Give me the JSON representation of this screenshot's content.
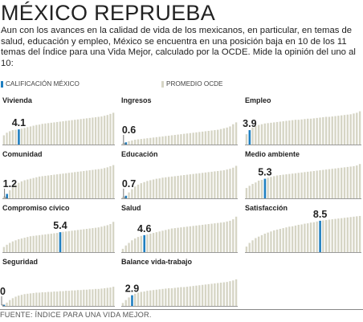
{
  "title": "MÉXICO REPRUEBA",
  "intro": "Aun con los avances en la calidad de vida de los mexicanos, en particular, en temas de salud, educación y empleo, México se encuentra en una posición baja en 10 de los 11 temas del Índice para una Vida Mejor, calculado por la OCDE. Mide la opinión del uno al 10:",
  "legend": [
    {
      "label": "CALIFICACIÓN MÉXICO",
      "color": "#1f7fc1"
    },
    {
      "label": "PROMEDIO OCDE",
      "color": "#d6d5c5"
    }
  ],
  "colors": {
    "mexico": "#1f7fc1",
    "ocde": "#d6d5c5",
    "axis": "#9a9a9a",
    "leader": "#555555"
  },
  "source": "FUENTE: ÍNDICE PARA UNA VIDA MEJOR.",
  "chart_data": [
    {
      "type": "bar",
      "title": "Vivienda",
      "mexico_value": "4.1",
      "mexico_rank": 5,
      "n": 38,
      "values": [
        2.5,
        3.2,
        3.6,
        3.9,
        4.0,
        4.1,
        4.3,
        4.5,
        4.7,
        4.9,
        5.1,
        5.3,
        5.4,
        5.6,
        5.7,
        5.8,
        5.9,
        6.0,
        6.1,
        6.2,
        6.3,
        6.4,
        6.5,
        6.6,
        6.7,
        6.8,
        6.9,
        7.0,
        7.1,
        7.2,
        7.3,
        7.4,
        7.5,
        7.6,
        7.8,
        8.0,
        8.3,
        8.6
      ]
    },
    {
      "type": "bar",
      "title": "Ingresos",
      "mexico_value": "0.6",
      "mexico_rank": 1,
      "n": 38,
      "values": [
        0.3,
        0.6,
        0.9,
        1.1,
        1.3,
        1.4,
        1.5,
        1.6,
        1.7,
        1.8,
        1.9,
        2.0,
        2.1,
        2.2,
        2.3,
        2.4,
        2.5,
        2.6,
        2.7,
        2.8,
        2.9,
        3.0,
        3.1,
        3.2,
        3.3,
        3.4,
        3.5,
        3.6,
        3.7,
        3.8,
        3.9,
        4.0,
        4.2,
        4.4,
        4.6,
        4.9,
        5.5,
        6.0
      ]
    },
    {
      "type": "bar",
      "title": "Empleo",
      "mexico_value": "3.9",
      "mexico_rank": 1,
      "n": 38,
      "values": [
        2.8,
        3.9,
        4.6,
        5.0,
        5.3,
        5.5,
        5.7,
        5.8,
        5.9,
        6.0,
        6.1,
        6.2,
        6.3,
        6.4,
        6.5,
        6.6,
        6.7,
        6.7,
        6.8,
        6.9,
        7.0,
        7.0,
        7.1,
        7.2,
        7.3,
        7.4,
        7.5,
        7.5,
        7.6,
        7.7,
        7.8,
        7.9,
        8.0,
        8.1,
        8.2,
        8.4,
        8.6,
        9.0
      ]
    },
    {
      "type": "bar",
      "title": "Comunidad",
      "mexico_value": "1.2",
      "mexico_rank": 1,
      "n": 38,
      "values": [
        0.5,
        1.2,
        2.2,
        3.2,
        3.8,
        4.2,
        4.6,
        4.9,
        5.1,
        5.3,
        5.5,
        5.7,
        5.9,
        6.0,
        6.1,
        6.2,
        6.3,
        6.4,
        6.5,
        6.6,
        6.7,
        6.8,
        6.9,
        7.0,
        7.1,
        7.2,
        7.3,
        7.4,
        7.5,
        7.6,
        7.7,
        7.8,
        7.9,
        8.0,
        8.2,
        8.4,
        8.7,
        9.0
      ]
    },
    {
      "type": "bar",
      "title": "Educación",
      "mexico_value": "0.7",
      "mexico_rank": 1,
      "n": 38,
      "values": [
        0.4,
        0.7,
        1.6,
        2.5,
        3.2,
        3.7,
        4.1,
        4.4,
        4.7,
        4.9,
        5.1,
        5.3,
        5.4,
        5.6,
        5.7,
        5.8,
        5.9,
        6.0,
        6.1,
        6.2,
        6.3,
        6.4,
        6.5,
        6.6,
        6.7,
        6.8,
        6.9,
        7.0,
        7.1,
        7.2,
        7.3,
        7.4,
        7.5,
        7.6,
        7.8,
        8.0,
        8.3,
        8.8
      ]
    },
    {
      "type": "bar",
      "title": "Medio ambiente",
      "mexico_value": "5.3",
      "mexico_rank": 6,
      "n": 38,
      "values": [
        2.8,
        3.4,
        3.9,
        4.3,
        4.8,
        5.0,
        5.3,
        5.6,
        5.8,
        6.0,
        6.2,
        6.3,
        6.4,
        6.5,
        6.6,
        6.7,
        6.8,
        6.9,
        7.0,
        7.1,
        7.2,
        7.3,
        7.4,
        7.5,
        7.6,
        7.7,
        7.8,
        7.9,
        8.0,
        8.1,
        8.2,
        8.3,
        8.4,
        8.5,
        8.6,
        8.7,
        8.9,
        9.3
      ]
    },
    {
      "type": "bar",
      "title": "Compromiso cívico",
      "mexico_value": "5.4",
      "mexico_rank": 19,
      "n": 38,
      "values": [
        1.4,
        2.0,
        2.5,
        2.9,
        3.2,
        3.5,
        3.7,
        3.9,
        4.1,
        4.3,
        4.4,
        4.5,
        4.6,
        4.7,
        4.8,
        4.9,
        5.0,
        5.1,
        5.2,
        5.4,
        5.5,
        5.6,
        5.7,
        5.8,
        5.9,
        6.0,
        6.1,
        6.2,
        6.3,
        6.4,
        6.5,
        6.6,
        6.7,
        6.9,
        7.1,
        7.3,
        7.6,
        8.2
      ]
    },
    {
      "type": "bar",
      "title": "Salud",
      "mexico_value": "4.6",
      "mexico_rank": 7,
      "n": 38,
      "values": [
        0.9,
        1.8,
        2.5,
        3.2,
        3.7,
        4.1,
        4.4,
        4.6,
        4.8,
        5.0,
        5.2,
        5.4,
        5.6,
        5.8,
        6.0,
        6.2,
        6.4,
        6.5,
        6.6,
        6.7,
        6.8,
        6.9,
        7.0,
        7.1,
        7.2,
        7.3,
        7.4,
        7.5,
        7.6,
        7.7,
        7.8,
        7.9,
        8.0,
        8.1,
        8.3,
        8.5,
        8.9,
        9.6
      ]
    },
    {
      "type": "bar",
      "title": "Satisfacción",
      "mexico_value": "8.5",
      "mexico_rank": 24,
      "n": 38,
      "values": [
        1.5,
        2.5,
        3.2,
        3.8,
        4.2,
        4.6,
        5.0,
        5.3,
        5.6,
        5.9,
        6.1,
        6.3,
        6.5,
        6.7,
        6.9,
        7.0,
        7.2,
        7.4,
        7.5,
        7.7,
        7.8,
        8.0,
        8.1,
        8.3,
        8.5,
        8.6,
        8.7,
        8.8,
        8.9,
        9.0,
        9.1,
        9.2,
        9.3,
        9.4,
        9.5,
        9.6,
        9.7,
        9.8
      ]
    },
    {
      "type": "bar",
      "title": "Seguridad",
      "mexico_value": "0",
      "mexico_rank": 0,
      "n": 38,
      "values": [
        0.05,
        0.9,
        1.6,
        2.1,
        2.5,
        2.8,
        3.0,
        3.2,
        3.3,
        3.4,
        3.5,
        3.6,
        3.6,
        3.7,
        3.7,
        3.8,
        3.8,
        3.9,
        3.9,
        4.0,
        4.0,
        4.1,
        4.1,
        4.2,
        4.2,
        4.3,
        4.3,
        4.4,
        4.4,
        4.5,
        4.5,
        4.6,
        4.6,
        4.7,
        4.8,
        4.9,
        5.0,
        5.2
      ]
    },
    {
      "type": "bar",
      "title": "Balance vida-trabajo",
      "mexico_value": "2.9",
      "mexico_rank": 3,
      "n": 38,
      "values": [
        0.8,
        1.6,
        2.3,
        2.9,
        3.3,
        3.6,
        3.8,
        3.9,
        4.1,
        4.2,
        4.3,
        4.4,
        4.5,
        4.6,
        4.7,
        4.8,
        4.8,
        4.9,
        5.0,
        5.1,
        5.1,
        5.2,
        5.3,
        5.4,
        5.5,
        5.6,
        5.7,
        5.8,
        5.9,
        6.0,
        6.1,
        6.2,
        6.3,
        6.4,
        6.5,
        6.7,
        6.9,
        7.2
      ]
    }
  ]
}
